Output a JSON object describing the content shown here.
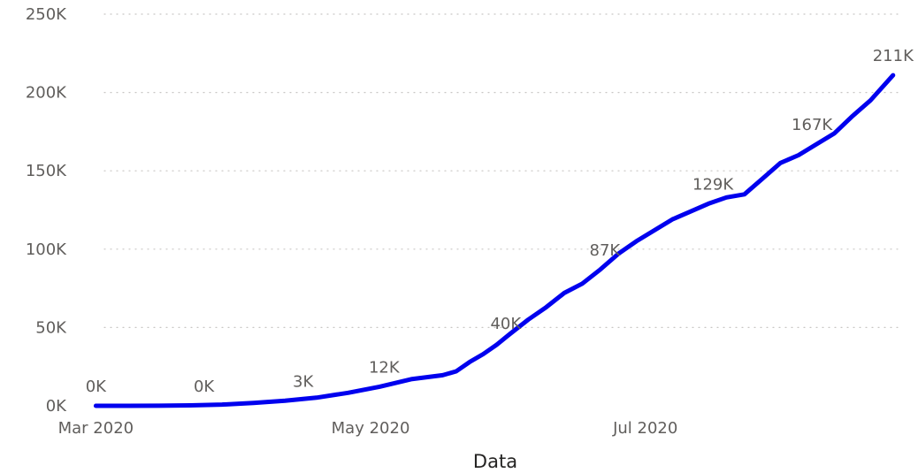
{
  "chart_data": {
    "type": "line",
    "title": "",
    "xlabel": "Data",
    "ylabel": "",
    "ylim": [
      0,
      250000
    ],
    "xlim": [
      "2020-02-26",
      "2020-08-27"
    ],
    "grid": true,
    "line_color": "#0000ee",
    "y_ticks": [
      {
        "value": 0,
        "label": "0K"
      },
      {
        "value": 50000,
        "label": "50K"
      },
      {
        "value": 100000,
        "label": "100K"
      },
      {
        "value": 150000,
        "label": "150K"
      },
      {
        "value": 200000,
        "label": "200K"
      },
      {
        "value": 250000,
        "label": "250K"
      }
    ],
    "x_ticks": [
      {
        "value": "2020-03-01",
        "label": "Mar 2020"
      },
      {
        "value": "2020-05-01",
        "label": "May 2020"
      },
      {
        "value": "2020-07-01",
        "label": "Jul 2020"
      }
    ],
    "series": [
      {
        "x": [
          "2020-03-01",
          "2020-03-08",
          "2020-03-15",
          "2020-03-22",
          "2020-03-29",
          "2020-04-05",
          "2020-04-12",
          "2020-04-19",
          "2020-04-26",
          "2020-05-03",
          "2020-05-10",
          "2020-05-17",
          "2020-05-20",
          "2020-05-23",
          "2020-05-26",
          "2020-05-29",
          "2020-06-01",
          "2020-06-05",
          "2020-06-09",
          "2020-06-13",
          "2020-06-17",
          "2020-06-21",
          "2020-06-25",
          "2020-06-29",
          "2020-07-03",
          "2020-07-07",
          "2020-07-11",
          "2020-07-15",
          "2020-07-19",
          "2020-07-23",
          "2020-07-27",
          "2020-07-31",
          "2020-08-04",
          "2020-08-08",
          "2020-08-12",
          "2020-08-16",
          "2020-08-20",
          "2020-08-25"
        ],
        "y": [
          0,
          0,
          50,
          300,
          800,
          1800,
          3200,
          5200,
          8300,
          12200,
          17000,
          19500,
          22000,
          28000,
          33000,
          39000,
          46000,
          55000,
          63000,
          72000,
          78000,
          87000,
          97000,
          105000,
          112000,
          119000,
          124000,
          129000,
          133000,
          135000,
          145000,
          155000,
          160000,
          167000,
          174000,
          185000,
          195000,
          211000
        ]
      }
    ],
    "data_labels": [
      {
        "x": "2020-03-01",
        "y": 0,
        "label": "0K"
      },
      {
        "x": "2020-03-25",
        "y": 0,
        "label": "0K"
      },
      {
        "x": "2020-04-16",
        "y": 3000,
        "label": "3K"
      },
      {
        "x": "2020-05-04",
        "y": 12000,
        "label": "12K"
      },
      {
        "x": "2020-05-31",
        "y": 40000,
        "label": "40K"
      },
      {
        "x": "2020-06-22",
        "y": 87000,
        "label": "87K"
      },
      {
        "x": "2020-07-16",
        "y": 129000,
        "label": "129K"
      },
      {
        "x": "2020-08-07",
        "y": 167000,
        "label": "167K"
      },
      {
        "x": "2020-08-25",
        "y": 211000,
        "label": "211K"
      }
    ]
  }
}
